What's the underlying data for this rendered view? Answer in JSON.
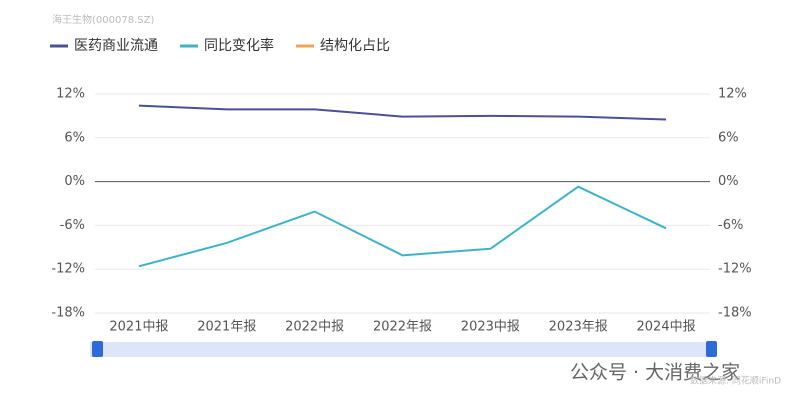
{
  "chart_data": {
    "type": "line",
    "subtitle": "海王生物(000078.SZ)",
    "categories": [
      "2021中报",
      "2021年报",
      "2022中报",
      "2022年报",
      "2023中报",
      "2023年报",
      "2024中报"
    ],
    "series": [
      {
        "name": "医药商业流通",
        "color": "#4b4f9a",
        "values": [
          10.4,
          9.9,
          9.9,
          8.9,
          9.0,
          8.9,
          8.5
        ]
      },
      {
        "name": "同比变化率",
        "color": "#3db3c8",
        "axis": "y2",
        "values": [
          -11.6,
          -8.4,
          -4.1,
          -10.1,
          -9.2,
          -0.7,
          -6.4
        ]
      },
      {
        "name": "结构化占比",
        "color": "#f0a45a",
        "values": [
          null,
          null,
          null,
          null,
          null,
          null,
          null
        ]
      }
    ],
    "ylim": [
      -18,
      12
    ],
    "yticks": [
      {
        "value": -18,
        "label": "-18%"
      },
      {
        "value": -12,
        "label": "-12%"
      },
      {
        "value": -6,
        "label": "-6%"
      },
      {
        "value": 0,
        "label": "0%"
      },
      {
        "value": 6,
        "label": "6%"
      },
      {
        "value": 12,
        "label": "12%"
      }
    ],
    "y2lim": [
      -18,
      12
    ],
    "y2ticks": [
      {
        "value": -18,
        "label": "-18%"
      },
      {
        "value": -12,
        "label": "-12%"
      },
      {
        "value": -6,
        "label": "-6%"
      },
      {
        "value": 0,
        "label": "0%"
      },
      {
        "value": 6,
        "label": "6%"
      },
      {
        "value": 12,
        "label": "12%"
      }
    ],
    "grid": true,
    "watermark": "公众号 · 大消费之家",
    "source": "数据来源: 同花顺iFinD"
  }
}
